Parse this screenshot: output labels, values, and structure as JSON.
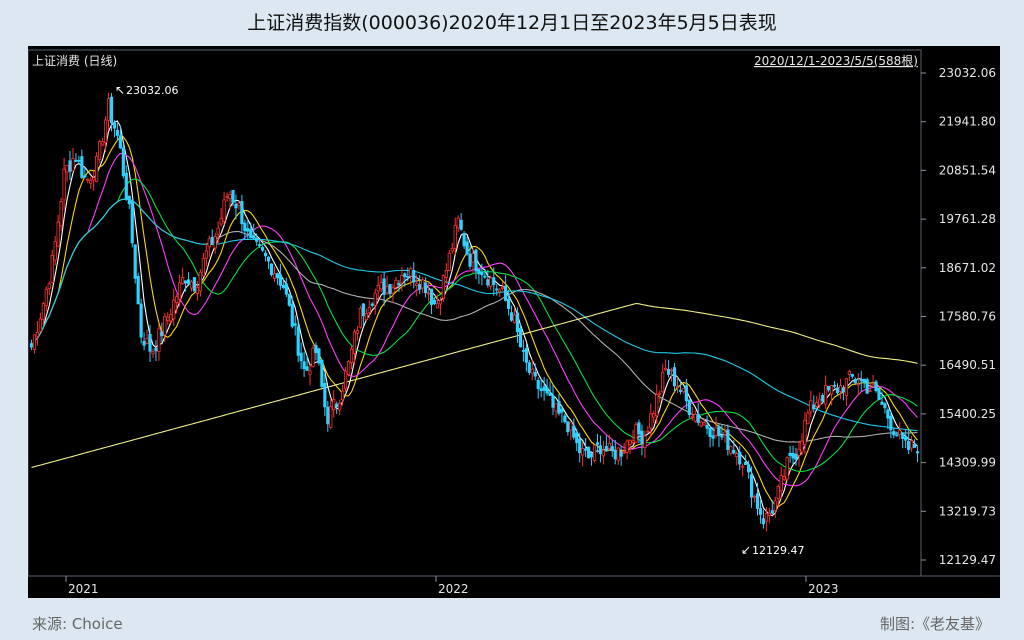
{
  "title": "上证消费指数(000036)2020年12月1日至2023年5月5日表现",
  "footer": {
    "source": "来源:  Choice",
    "credit": "制图:《老友基》"
  },
  "chart_data": {
    "type": "candlestick",
    "instrument_label": "上证消费 (日线)",
    "range_label": "2020/12/1-2023/5/5(588根)",
    "yticks": [
      "23032.06",
      "21941.80",
      "20851.54",
      "19761.28",
      "18671.02",
      "17580.76",
      "16490.51",
      "15400.25",
      "14309.99",
      "13219.73",
      "12129.47"
    ],
    "ylim": [
      12129.47,
      23032.06
    ],
    "xticks": [
      "2021",
      "2022",
      "2023"
    ],
    "max_annotation": "23032.06",
    "min_annotation": "12129.47",
    "n_bars": 588,
    "close_series_approx": [
      16900,
      17800,
      18900,
      20800,
      21200,
      20600,
      21000,
      22300,
      21500,
      19800,
      17200,
      16800,
      17300,
      17900,
      18500,
      18300,
      19000,
      19500,
      20400,
      20000,
      19200,
      19000,
      18700,
      18300,
      17300,
      16300,
      16800,
      15300,
      15700,
      16500,
      17600,
      18000,
      18200,
      18300,
      18600,
      18500,
      18300,
      17800,
      18700,
      19700,
      18900,
      18700,
      18400,
      18100,
      17600,
      16600,
      16100,
      15800,
      15400,
      15200,
      14600,
      14400,
      14700,
      14500,
      14600,
      15000,
      14900,
      15600,
      16400,
      16100,
      15600,
      15300,
      15100,
      14900,
      14700,
      14400,
      13600,
      13000,
      13400,
      14200,
      14600,
      15400,
      15800,
      15900,
      16000,
      16200,
      16100,
      15900,
      15500,
      15000,
      14600,
      14700
    ],
    "moving_average_colors": [
      "#ffffff",
      "#ffd700",
      "#ff3cff",
      "#00e040",
      "#b0b0b0",
      "#20c8e6",
      "#f0f088"
    ]
  }
}
